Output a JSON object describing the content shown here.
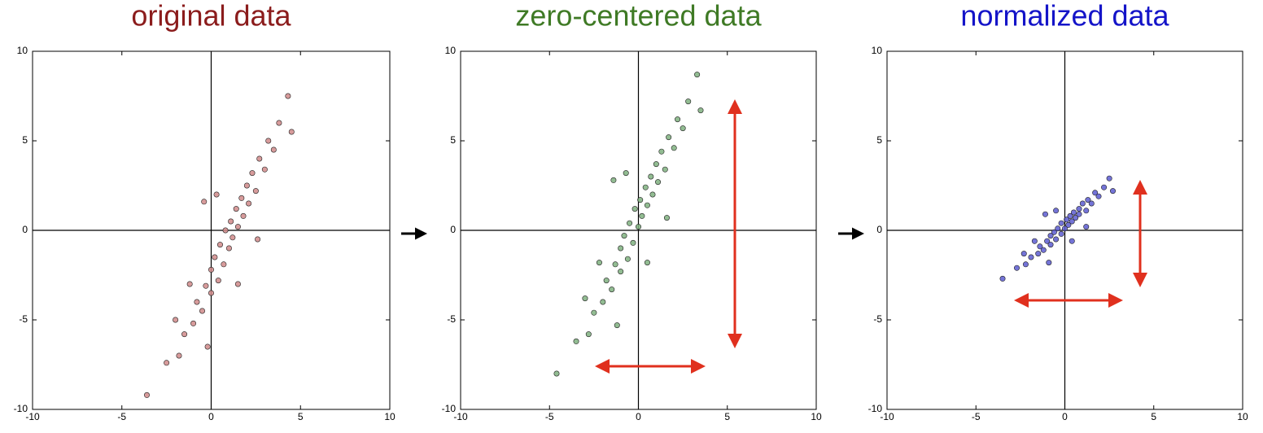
{
  "chart_data": [
    {
      "type": "scatter",
      "title": "original data",
      "title_color": "#8b1c1c",
      "color": "#d08a8a",
      "x": [
        -3.6,
        -2.5,
        -1.8,
        -1.5,
        -1,
        -0.8,
        -0.5,
        -0.3,
        0,
        0,
        0.2,
        0.4,
        0.5,
        0.7,
        0.8,
        1,
        1.1,
        1.2,
        1.4,
        1.5,
        1.7,
        1.8,
        2,
        2.1,
        2.3,
        2.5,
        2.7,
        3,
        3.2,
        3.5,
        3.8,
        4.3,
        -0.2,
        1.5,
        0.3,
        2.6,
        -1.2,
        -2,
        4.5,
        -0.4
      ],
      "y": [
        -9.2,
        -7.4,
        -7.0,
        -5.8,
        -5.2,
        -4.0,
        -4.5,
        -3.1,
        -3.5,
        -2.2,
        -1.5,
        -2.8,
        -0.8,
        -1.9,
        0,
        -1,
        0.5,
        -0.4,
        1.2,
        0.2,
        1.8,
        0.8,
        2.5,
        1.5,
        3.2,
        2.2,
        4,
        3.4,
        5,
        4.5,
        6,
        7.5,
        -6.5,
        -3,
        2,
        -0.5,
        -3,
        -5,
        5.5,
        1.6
      ],
      "xlim": [
        -10,
        10
      ],
      "ylim": [
        -10,
        10
      ],
      "xticks": [
        -10,
        -5,
        0,
        5,
        10
      ],
      "yticks": [
        -10,
        -5,
        0,
        5,
        10
      ]
    },
    {
      "type": "scatter",
      "title": "zero-centered data",
      "title_color": "#3f7a25",
      "color": "#7fb07f",
      "x": [
        -4.6,
        -3.5,
        -2.8,
        -2.5,
        -2,
        -1.8,
        -1.5,
        -1.3,
        -1,
        -1,
        -0.8,
        -0.6,
        -0.5,
        -0.3,
        -0.2,
        0,
        0.1,
        0.2,
        0.4,
        0.5,
        0.7,
        0.8,
        1,
        1.1,
        1.3,
        1.5,
        1.7,
        2,
        2.2,
        2.5,
        2.8,
        3.3,
        -1.2,
        0.5,
        -0.7,
        1.6,
        -2.2,
        -3,
        3.5,
        -1.4
      ],
      "y": [
        -8.0,
        -6.2,
        -5.8,
        -4.6,
        -4.0,
        -2.8,
        -3.3,
        -1.9,
        -2.3,
        -1.0,
        -0.3,
        -1.6,
        0.4,
        -0.7,
        1.2,
        0.2,
        1.7,
        0.8,
        2.4,
        1.4,
        3.0,
        2.0,
        3.7,
        2.7,
        4.4,
        3.4,
        5.2,
        4.6,
        6.2,
        5.7,
        7.2,
        8.7,
        -5.3,
        -1.8,
        3.2,
        0.7,
        -1.8,
        -3.8,
        6.7,
        2.8
      ],
      "xlim": [
        -10,
        10
      ],
      "ylim": [
        -10,
        10
      ],
      "xticks": [
        -10,
        -5,
        0,
        5,
        10
      ],
      "yticks": [
        -10,
        -5,
        0,
        5,
        10
      ]
    },
    {
      "type": "scatter",
      "title": "normalized data",
      "title_color": "#1414c8",
      "color": "#5c5cd0",
      "x": [
        -3.5,
        -2.7,
        -2.2,
        -1.9,
        -1.5,
        -1.4,
        -1.2,
        -1.0,
        -0.8,
        -0.8,
        -0.6,
        -0.5,
        -0.4,
        -0.2,
        -0.2,
        0,
        0.1,
        0.2,
        0.3,
        0.4,
        0.5,
        0.6,
        0.8,
        0.8,
        1.0,
        1.2,
        1.3,
        1.5,
        1.7,
        1.9,
        2.2,
        2.5,
        -0.9,
        0.4,
        -0.5,
        1.2,
        -1.7,
        -2.3,
        2.7,
        -1.1
      ],
      "y": [
        -2.7,
        -2.1,
        -1.9,
        -1.5,
        -1.3,
        -0.9,
        -1.1,
        -0.6,
        -0.8,
        -0.3,
        -0.1,
        -0.5,
        0.1,
        -0.2,
        0.4,
        0.1,
        0.6,
        0.3,
        0.8,
        0.5,
        1.0,
        0.7,
        1.2,
        0.9,
        1.5,
        1.1,
        1.7,
        1.5,
        2.1,
        1.9,
        2.4,
        2.9,
        -1.8,
        -0.6,
        1.1,
        0.2,
        -0.6,
        -1.3,
        2.2,
        0.9
      ],
      "xlim": [
        -10,
        10
      ],
      "ylim": [
        -10,
        10
      ],
      "xticks": [
        -10,
        -5,
        0,
        5,
        10
      ],
      "yticks": [
        -10,
        -5,
        0,
        5,
        10
      ]
    }
  ]
}
